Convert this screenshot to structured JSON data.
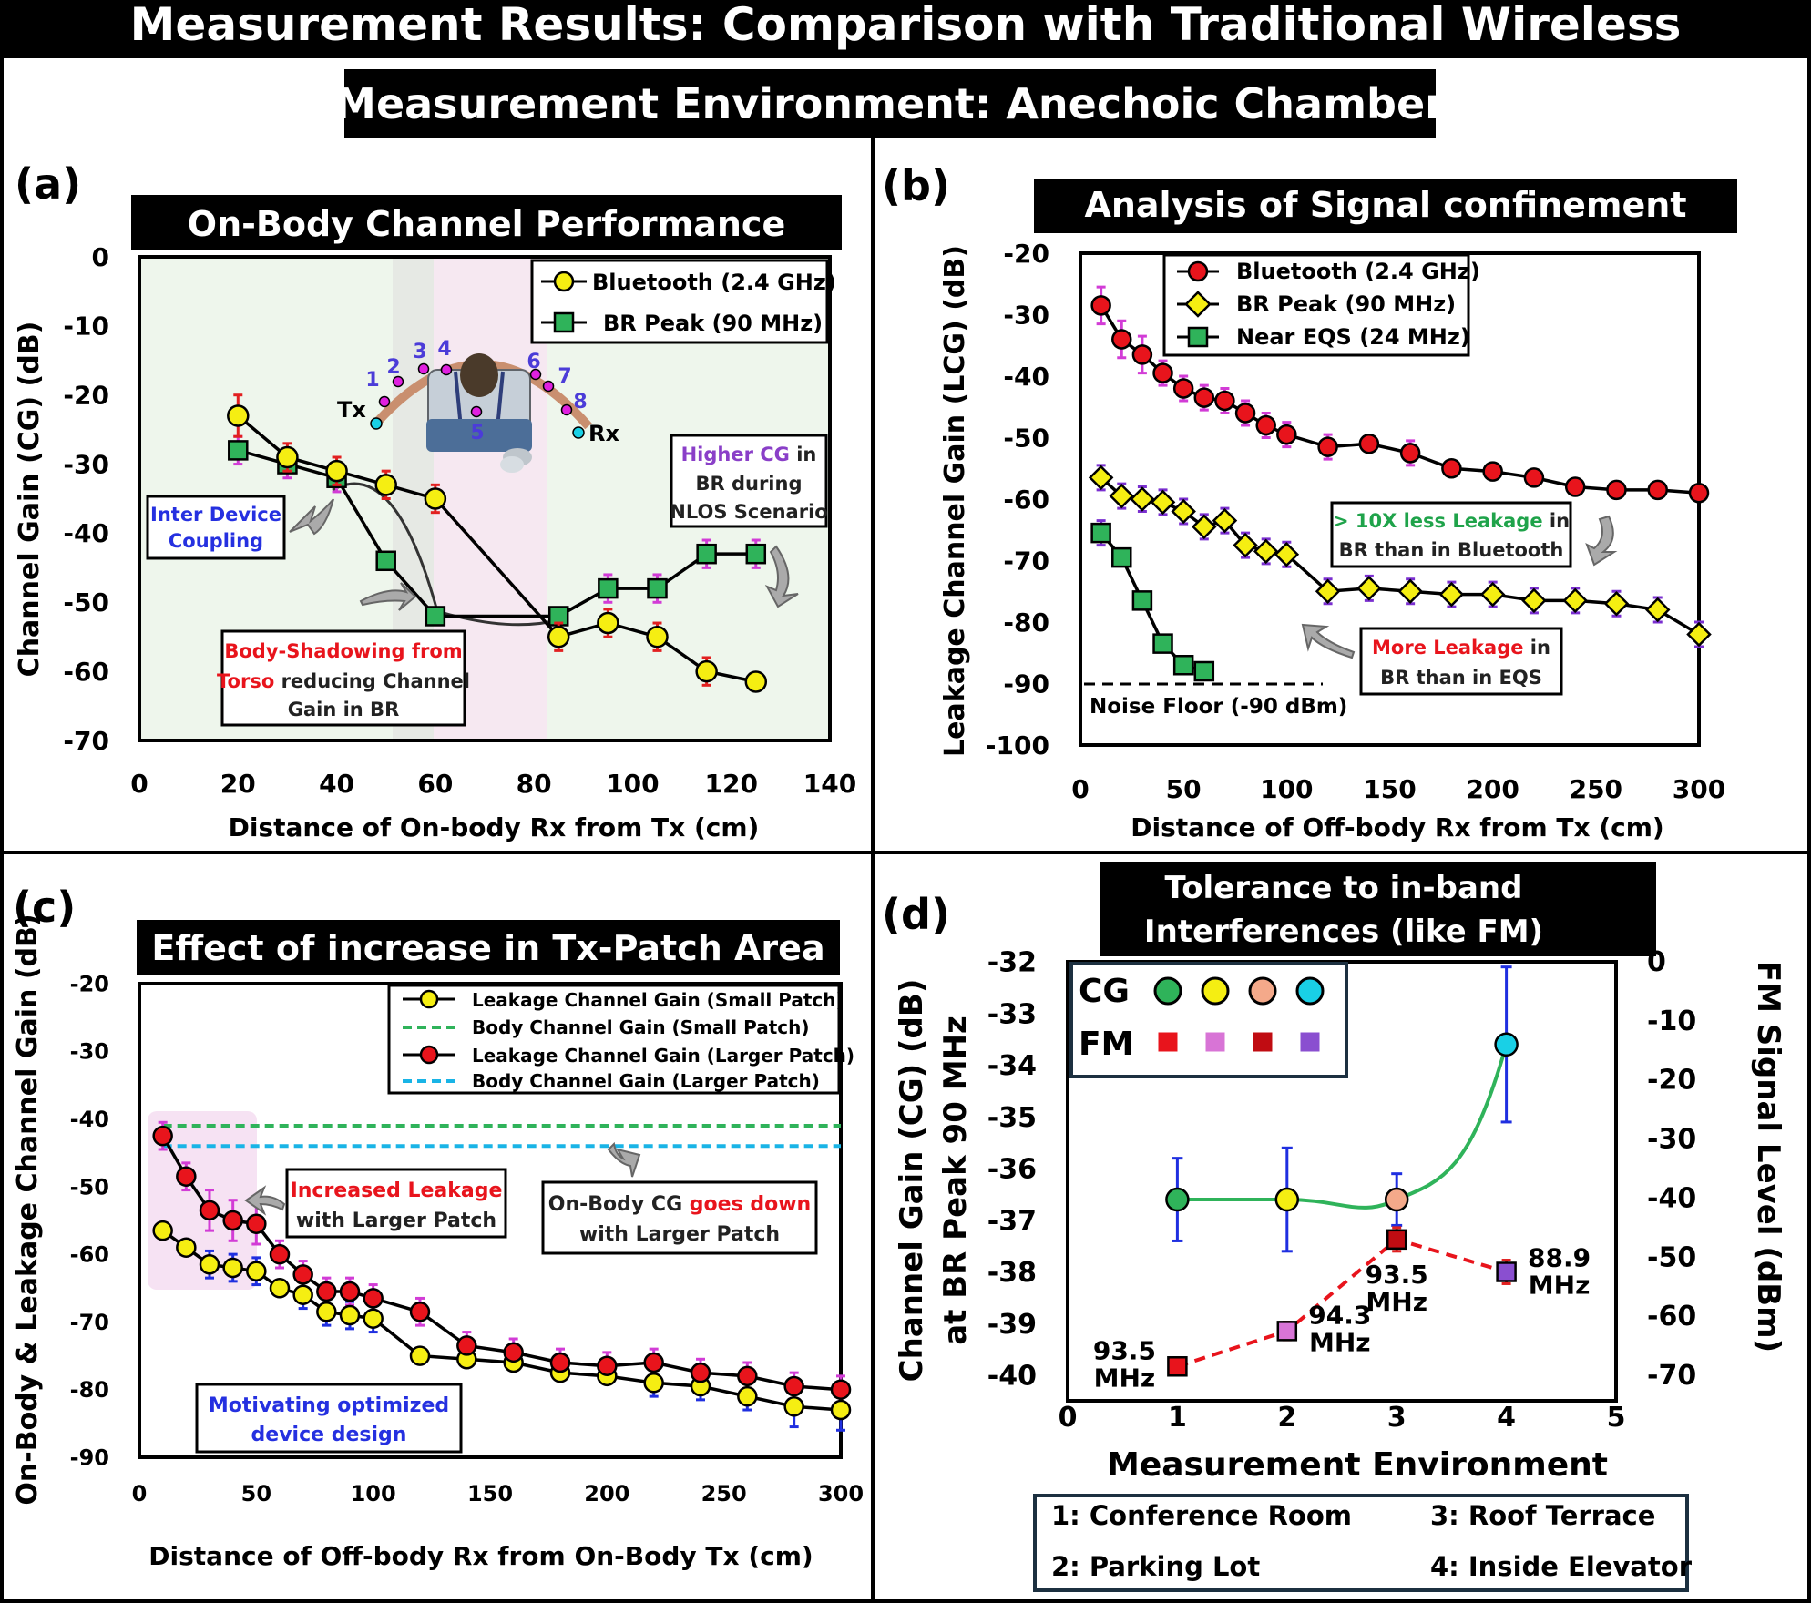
{
  "main_title": "Measurement Results: Comparison with Traditional Wireless",
  "sub_title": "Measurement Environment: Anechoic Chamber",
  "colors": {
    "red": "#e8141c",
    "yellow": "#f5ee12",
    "green": "#2fb35a",
    "cyan": "#19d0e6",
    "peach": "#f4a98a",
    "pink": "#d874d6",
    "darkred": "#c00c12",
    "purple": "#8a4fd0",
    "errMagenta": "#d23cd6",
    "errRed": "#e22020",
    "errPurple": "#7a2fd0",
    "errBlue": "#1f2fe0"
  },
  "chart_data": [
    {
      "panel": "(a)",
      "type": "line",
      "title": "On-Body Channel Performance",
      "xlabel": "Distance of On-body Rx from Tx (cm)",
      "ylabel": "Channel Gain (CG) (dB)",
      "xlim": [
        0,
        140
      ],
      "ylim": [
        -70,
        0
      ],
      "xticks": [
        0,
        20,
        40,
        60,
        80,
        100,
        120,
        140
      ],
      "yticks": [
        0,
        -10,
        -20,
        -30,
        -40,
        -50,
        -60,
        -70
      ],
      "series": [
        {
          "name": "Bluetooth (2.4 GHz)",
          "marker": "circle",
          "color": "yellow",
          "x": [
            20,
            30,
            40,
            50,
            60,
            85,
            95,
            105,
            115,
            125
          ],
          "y": [
            -23,
            -29,
            -31,
            -33,
            -35,
            -55,
            -53,
            -55,
            -60,
            -61.5
          ],
          "err": [
            3,
            2,
            2,
            2,
            2,
            2,
            2,
            2,
            2,
            1
          ]
        },
        {
          "name": "BR Peak (90 MHz)",
          "marker": "square",
          "color": "green",
          "x": [
            20,
            30,
            40,
            50,
            60,
            85,
            95,
            105,
            115,
            125
          ],
          "y": [
            -28,
            -30,
            -32,
            -44,
            -52,
            -52,
            -48,
            -48,
            -43,
            -43
          ],
          "err": [
            2,
            2,
            2,
            1,
            1,
            1,
            2,
            2,
            2,
            2
          ]
        }
      ],
      "point_labels": [
        "1",
        "2",
        "3",
        "4",
        "5",
        "6",
        "7",
        "8"
      ],
      "tx_label": "Tx",
      "rx_label": "Rx",
      "annotations": {
        "inter_device": [
          "Inter Device",
          "Coupling"
        ],
        "body_shadow": [
          "Body-Shadowing from",
          "Torso reducing Channel",
          "Gain in BR"
        ],
        "body_shadow_red_1": "Body-Shadowing from",
        "body_shadow_red_2": "Torso",
        "body_shadow_black_2": " reducing Channel",
        "higher_cg_purple": "Higher CG ",
        "higher_cg_black": "in",
        "higher_cg_2": "BR during",
        "higher_cg_3": "NLOS Scenario"
      }
    },
    {
      "panel": "(b)",
      "type": "line",
      "title": "Analysis of Signal confinement",
      "xlabel": "Distance of Off-body Rx from Tx (cm)",
      "ylabel": "Leakage Channel Gain (LCG) (dB)",
      "xlim": [
        0,
        300
      ],
      "ylim": [
        -100,
        -20
      ],
      "xticks": [
        0,
        50,
        100,
        150,
        200,
        250,
        300
      ],
      "yticks": [
        -20,
        -30,
        -40,
        -50,
        -60,
        -70,
        -80,
        -90,
        -100
      ],
      "series": [
        {
          "name": "Bluetooth (2.4 GHz)",
          "marker": "circle",
          "color": "red",
          "x": [
            10,
            20,
            30,
            40,
            50,
            60,
            70,
            80,
            90,
            100,
            120,
            140,
            160,
            180,
            200,
            220,
            240,
            260,
            280,
            300
          ],
          "y": [
            -28.5,
            -34,
            -36.5,
            -39.5,
            -42,
            -43.5,
            -44,
            -46,
            -48,
            -49.5,
            -51.5,
            -51,
            -52.5,
            -55,
            -55.5,
            -56.5,
            -58,
            -58.5,
            -58.5,
            -59
          ],
          "err": [
            3,
            3,
            3,
            2,
            2,
            2,
            2,
            2,
            2,
            2,
            2,
            1,
            2,
            1,
            1,
            1,
            1,
            1,
            1,
            1
          ]
        },
        {
          "name": "BR Peak (90 MHz)",
          "marker": "diamond",
          "color": "yellow",
          "x": [
            10,
            20,
            30,
            40,
            50,
            60,
            70,
            80,
            90,
            100,
            120,
            140,
            160,
            180,
            200,
            220,
            240,
            260,
            280,
            300
          ],
          "y": [
            -56.5,
            -59.5,
            -60,
            -60.5,
            -62,
            -64.5,
            -63.5,
            -67.5,
            -68.5,
            -69,
            -75,
            -74.5,
            -75,
            -75.5,
            -75.5,
            -76.5,
            -76.5,
            -77,
            -78,
            -82
          ],
          "err": [
            2,
            2,
            2,
            2,
            2,
            2,
            2,
            2,
            2,
            2,
            2,
            2,
            2,
            2,
            2,
            2,
            2,
            2,
            2,
            2
          ]
        },
        {
          "name": "Near EQS (24 MHz)",
          "marker": "square",
          "color": "green",
          "x": [
            10,
            20,
            30,
            40,
            50,
            60
          ],
          "y": [
            -65.5,
            -69.5,
            -76.5,
            -83.5,
            -87,
            -88
          ],
          "err": [
            2,
            1,
            1,
            1,
            1,
            1
          ]
        }
      ],
      "noise_floor": -90,
      "noise_floor_label": "Noise Floor (-90 dBm)",
      "annotations": {
        "less_leak_green": "> 10X less Leakage",
        "less_leak_black": " in",
        "less_leak_2": "BR than in Bluetooth",
        "more_leak_red": "More Leakage",
        "more_leak_black": " in",
        "more_leak_2": "BR than in EQS"
      }
    },
    {
      "panel": "(c)",
      "type": "line",
      "title": "Effect of increase in Tx-Patch Area",
      "xlabel": "Distance of Off-body Rx from On-Body Tx (cm)",
      "ylabel": "On-Body & Leakage Channel Gain (dB)",
      "xlim": [
        0,
        300
      ],
      "ylim": [
        -90,
        -20
      ],
      "xticks": [
        0,
        50,
        100,
        150,
        200,
        250,
        300
      ],
      "yticks": [
        -20,
        -30,
        -40,
        -50,
        -60,
        -70,
        -80,
        -90
      ],
      "series": [
        {
          "name": "Leakage Channel Gain (Small Patch)",
          "marker": "circle",
          "color": "yellow",
          "x": [
            10,
            20,
            30,
            40,
            50,
            60,
            70,
            80,
            90,
            100,
            120,
            140,
            160,
            180,
            200,
            220,
            240,
            260,
            280,
            300
          ],
          "y": [
            -56.5,
            -59,
            -61.5,
            -62,
            -62.5,
            -65,
            -66,
            -68.5,
            -69,
            -69.5,
            -75,
            -75.5,
            -76,
            -77.5,
            -78,
            -79,
            -79.5,
            -81,
            -82.5,
            -83
          ],
          "err": [
            1,
            1,
            2,
            2,
            2,
            1,
            2,
            2,
            2,
            2,
            1,
            1,
            1,
            1,
            1,
            2,
            2,
            2,
            3,
            3
          ]
        },
        {
          "name": "Body Channel Gain (Small Patch)",
          "style": "dashed",
          "color": "green",
          "y": -41
        },
        {
          "name": "Leakage Channel Gain (Larger Patch)",
          "marker": "circle",
          "color": "red",
          "x": [
            10,
            20,
            30,
            40,
            50,
            60,
            70,
            80,
            90,
            100,
            120,
            140,
            160,
            180,
            200,
            220,
            240,
            260,
            280,
            300
          ],
          "y": [
            -42.5,
            -48.5,
            -53.5,
            -55,
            -55.5,
            -60,
            -63,
            -65.5,
            -65.5,
            -66.5,
            -68.5,
            -73.5,
            -74.5,
            -76,
            -76.5,
            -76,
            -77.5,
            -78,
            -79.5,
            -80
          ],
          "err": [
            2,
            2,
            3,
            3,
            3,
            2,
            2,
            2,
            2,
            2,
            2,
            2,
            2,
            2,
            2,
            2,
            2,
            2,
            2,
            2
          ]
        },
        {
          "name": "Body Channel Gain (Larger Patch)",
          "style": "dashed",
          "color": "cyan",
          "y": -44
        }
      ],
      "annotations": {
        "increased_red": "Increased Leakage",
        "increased_2": "with Larger Patch",
        "ondown_black": "On-Body CG ",
        "ondown_red": "goes down",
        "ondown_2": "with Larger Patch",
        "motivating_1": "Motivating optimized",
        "motivating_2": "device design"
      }
    },
    {
      "panel": "(d)",
      "type": "line",
      "title": "Tolerance to in-band Interferences (like FM)",
      "title_lines": [
        "Tolerance to in-band",
        "Interferences (like FM)"
      ],
      "xlabel": "Measurement Environment",
      "ylabel": "Channel Gain (CG) (dB) at BR Peak 90 MHz",
      "ylabel_lines": [
        "Channel Gain (CG) (dB)",
        "at BR Peak 90 MHz"
      ],
      "y2label": "FM Signal Level (dBm)",
      "xlim": [
        0,
        5
      ],
      "ylim": [
        -40,
        -32
      ],
      "y2lim": [
        -70,
        0
      ],
      "xticks": [
        0,
        1,
        2,
        3,
        4,
        5
      ],
      "yticks": [
        -32,
        -33,
        -34,
        -35,
        -36,
        -37,
        -38,
        -39,
        -40
      ],
      "y2ticks": [
        0,
        -10,
        -20,
        -30,
        -40,
        -50,
        -60,
        -70
      ],
      "series": [
        {
          "name": "CG",
          "marker": "circle",
          "colors": [
            "green",
            "yellow",
            "peach",
            "cyan"
          ],
          "x": [
            1,
            2,
            3,
            4
          ],
          "y": [
            -36.6,
            -36.6,
            -36.6,
            -33.6
          ],
          "err": [
            0.8,
            1.0,
            0.5,
            1.5
          ]
        },
        {
          "name": "FM",
          "marker": "square",
          "colors": [
            "red",
            "pink",
            "darkred",
            "purple"
          ],
          "x": [
            1,
            2,
            3,
            4
          ],
          "y2": [
            -68.5,
            -62.5,
            -47,
            -52.5
          ],
          "err2": [
            1.5,
            1.5,
            2,
            2
          ],
          "labels": [
            [
              "93.5",
              "MHz"
            ],
            [
              "94.3",
              "MHz"
            ],
            [
              "93.5",
              "MHz"
            ],
            [
              "88.9",
              "MHz"
            ]
          ]
        }
      ],
      "legend_cg": "CG",
      "legend_fm": "FM",
      "environments": [
        "1: Conference Room",
        "2: Parking Lot",
        "3: Roof Terrace",
        "4: Inside Elevator"
      ]
    }
  ]
}
